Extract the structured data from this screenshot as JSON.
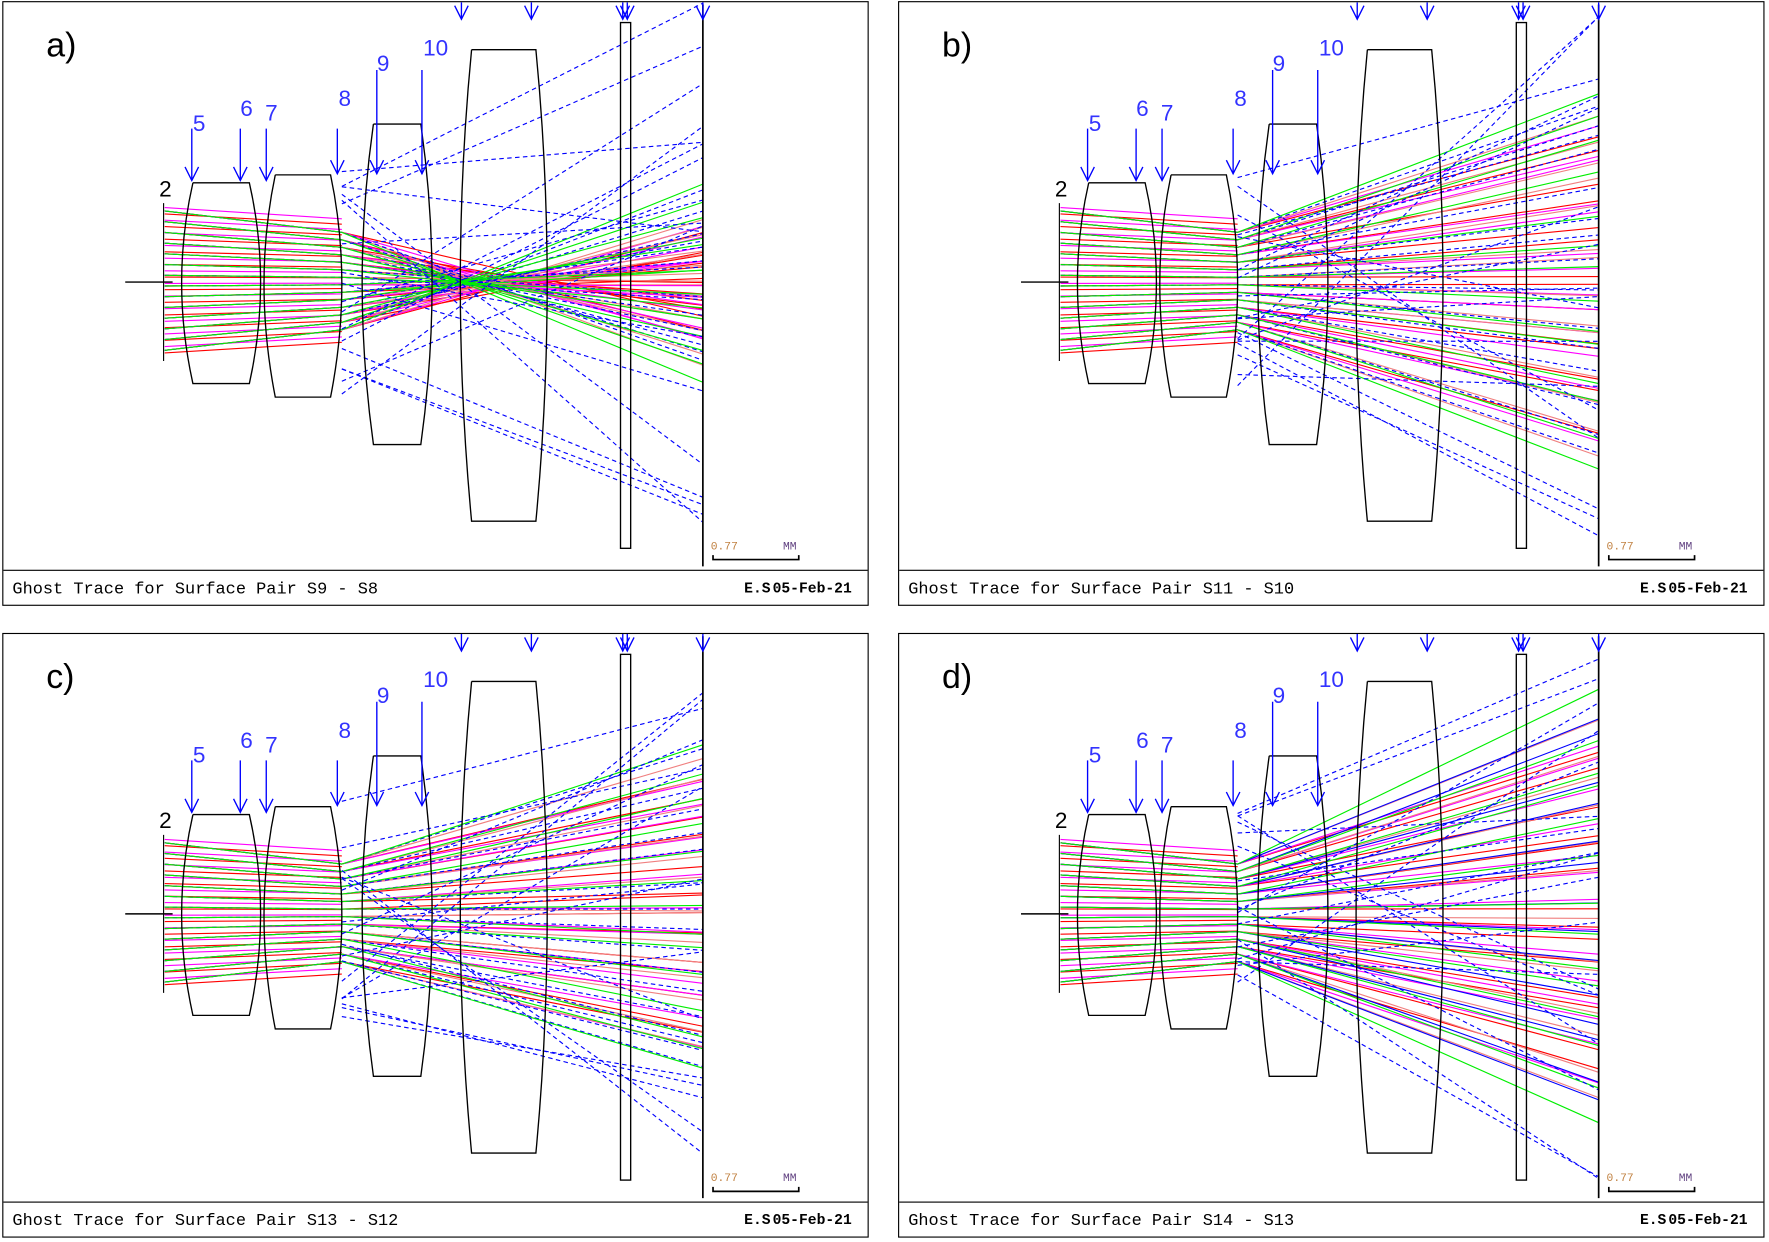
{
  "panels": [
    {
      "label": "a)",
      "caption": "Ghost Trace for Surface Pair S9 - S8",
      "author": "E.S",
      "date": "05-Feb-21"
    },
    {
      "label": "b)",
      "caption": "Ghost Trace for Surface Pair S11 - S10",
      "author": "E.S",
      "date": "05-Feb-21"
    },
    {
      "label": "c)",
      "caption": "Ghost Trace for Surface Pair S13 - S12",
      "author": "E.S",
      "date": "05-Feb-21"
    },
    {
      "label": "d)",
      "caption": "Ghost Trace for Surface Pair S14 - S13",
      "author": "E.S",
      "date": "05-Feb-21"
    }
  ],
  "surface_labels": [
    "2",
    "5",
    "6",
    "7",
    "8",
    "9",
    "10"
  ],
  "scale_bar": {
    "value": "0.77",
    "unit": "MM"
  },
  "colors": {
    "red": "#ff0000",
    "magenta": "#ff00ff",
    "salmon": "#f08080",
    "green": "#00ee00",
    "blue": "#0000ff",
    "label": "#3333ff"
  }
}
